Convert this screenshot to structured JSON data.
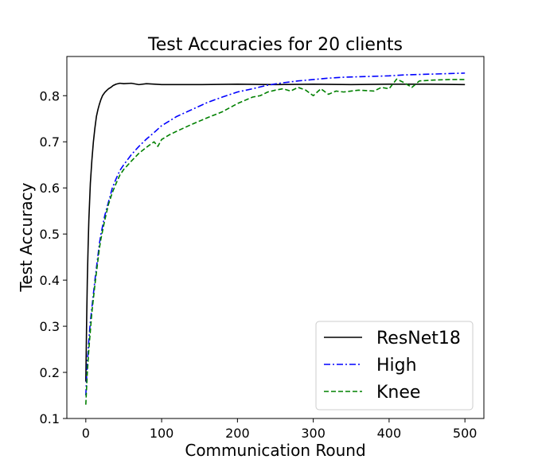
{
  "chart_data": {
    "type": "line",
    "title": "Test Accuracies for 20 clients",
    "xlabel": "Communication Round",
    "ylabel": "Test Accuracy",
    "xlim": [
      -25,
      525
    ],
    "ylim": [
      0.1,
      0.885
    ],
    "xticks": [
      0,
      100,
      200,
      300,
      400,
      500
    ],
    "yticks": [
      0.1,
      0.2,
      0.3,
      0.4,
      0.5,
      0.6,
      0.7,
      0.8
    ],
    "grid": false,
    "legend_position": "lower-right",
    "series": [
      {
        "name": "ResNet18",
        "color": "#000000",
        "style": "solid",
        "x": [
          0,
          1,
          2,
          3,
          4,
          5,
          6,
          8,
          10,
          12,
          14,
          16,
          18,
          20,
          22,
          25,
          28,
          30,
          33,
          36,
          40,
          45,
          50,
          60,
          70,
          80,
          100,
          150,
          200,
          250,
          300,
          350,
          400,
          450,
          500
        ],
        "y": [
          0.18,
          0.3,
          0.4,
          0.47,
          0.53,
          0.57,
          0.61,
          0.66,
          0.7,
          0.73,
          0.755,
          0.77,
          0.782,
          0.792,
          0.8,
          0.807,
          0.812,
          0.815,
          0.818,
          0.822,
          0.825,
          0.827,
          0.826,
          0.827,
          0.824,
          0.826,
          0.824,
          0.824,
          0.825,
          0.824,
          0.825,
          0.824,
          0.825,
          0.825,
          0.824
        ]
      },
      {
        "name": "High",
        "color": "#0000ff",
        "style": "dashdot",
        "x": [
          0,
          2,
          4,
          6,
          8,
          10,
          12,
          15,
          18,
          20,
          25,
          30,
          35,
          40,
          45,
          50,
          60,
          70,
          80,
          90,
          100,
          110,
          120,
          140,
          160,
          180,
          200,
          220,
          240,
          260,
          280,
          300,
          320,
          340,
          360,
          380,
          400,
          420,
          440,
          460,
          480,
          500
        ],
        "y": [
          0.15,
          0.22,
          0.27,
          0.31,
          0.34,
          0.37,
          0.4,
          0.44,
          0.48,
          0.5,
          0.54,
          0.57,
          0.6,
          0.62,
          0.638,
          0.65,
          0.672,
          0.69,
          0.706,
          0.72,
          0.735,
          0.745,
          0.755,
          0.77,
          0.785,
          0.797,
          0.808,
          0.815,
          0.823,
          0.828,
          0.832,
          0.835,
          0.838,
          0.84,
          0.841,
          0.842,
          0.843,
          0.845,
          0.846,
          0.847,
          0.848,
          0.849
        ]
      },
      {
        "name": "Knee",
        "color": "#008000",
        "style": "dashed",
        "x": [
          0,
          2,
          4,
          6,
          8,
          10,
          12,
          15,
          18,
          20,
          25,
          30,
          35,
          40,
          45,
          50,
          60,
          70,
          80,
          90,
          95,
          100,
          110,
          120,
          140,
          160,
          180,
          200,
          210,
          220,
          230,
          240,
          250,
          260,
          270,
          280,
          290,
          300,
          310,
          320,
          330,
          340,
          360,
          380,
          390,
          400,
          410,
          420,
          430,
          440,
          460,
          480,
          500
        ],
        "y": [
          0.13,
          0.2,
          0.25,
          0.29,
          0.33,
          0.36,
          0.39,
          0.43,
          0.47,
          0.49,
          0.53,
          0.565,
          0.59,
          0.61,
          0.628,
          0.64,
          0.658,
          0.675,
          0.688,
          0.7,
          0.69,
          0.705,
          0.715,
          0.723,
          0.738,
          0.752,
          0.765,
          0.783,
          0.79,
          0.797,
          0.8,
          0.808,
          0.812,
          0.815,
          0.81,
          0.818,
          0.812,
          0.8,
          0.815,
          0.803,
          0.81,
          0.808,
          0.812,
          0.81,
          0.818,
          0.815,
          0.836,
          0.828,
          0.818,
          0.832,
          0.834,
          0.835,
          0.835
        ]
      }
    ]
  }
}
